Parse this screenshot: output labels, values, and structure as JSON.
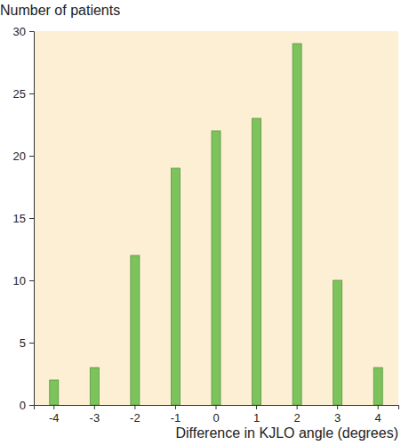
{
  "chart_data": {
    "type": "bar",
    "y_label": "Number of patients",
    "x_label": "Difference in KJLO angle (degrees)",
    "categories": [
      "-4",
      "-3",
      "-2",
      "-1",
      "0",
      "1",
      "2",
      "3",
      "4"
    ],
    "values": [
      2,
      3,
      12,
      19,
      22,
      23,
      29,
      10,
      3
    ],
    "color": "#7cc35c",
    "ylim": [
      0,
      30
    ],
    "yticks": [
      0,
      5,
      10,
      15,
      20,
      25,
      30
    ],
    "grid": false
  }
}
